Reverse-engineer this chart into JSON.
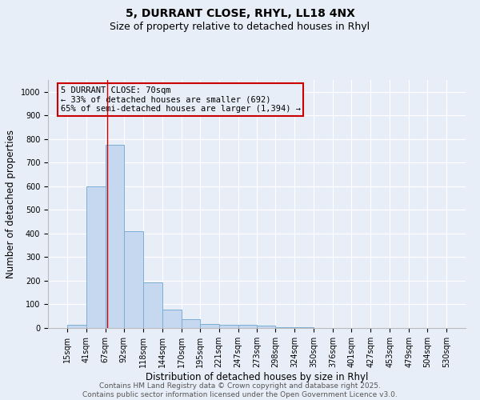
{
  "title_line1": "5, DURRANT CLOSE, RHYL, LL18 4NX",
  "title_line2": "Size of property relative to detached houses in Rhyl",
  "xlabel": "Distribution of detached houses by size in Rhyl",
  "ylabel": "Number of detached properties",
  "bar_edges": [
    15,
    41,
    67,
    92,
    118,
    144,
    170,
    195,
    221,
    247,
    273,
    298,
    324,
    350,
    376,
    401,
    427,
    453,
    479,
    504,
    530
  ],
  "bar_heights": [
    15,
    600,
    775,
    410,
    193,
    78,
    37,
    18,
    15,
    13,
    10,
    5,
    2,
    1,
    1,
    0,
    0,
    0,
    0,
    0
  ],
  "bar_color": "#c5d8f0",
  "bar_edgecolor": "#7bafd4",
  "ylim": [
    0,
    1050
  ],
  "yticks": [
    0,
    100,
    200,
    300,
    400,
    500,
    600,
    700,
    800,
    900,
    1000
  ],
  "vline_x": 70,
  "vline_color": "#cc0000",
  "annotation_box_text": "5 DURRANT CLOSE: 70sqm\n← 33% of detached houses are smaller (692)\n65% of semi-detached houses are larger (1,394) →",
  "footer_line1": "Contains HM Land Registry data © Crown copyright and database right 2025.",
  "footer_line2": "Contains public sector information licensed under the Open Government Licence v3.0.",
  "background_color": "#e8eef8",
  "grid_color": "#ffffff",
  "title_fontsize": 10,
  "subtitle_fontsize": 9,
  "axis_label_fontsize": 8.5,
  "tick_fontsize": 7,
  "annotation_fontsize": 7.5,
  "footer_fontsize": 6.5
}
